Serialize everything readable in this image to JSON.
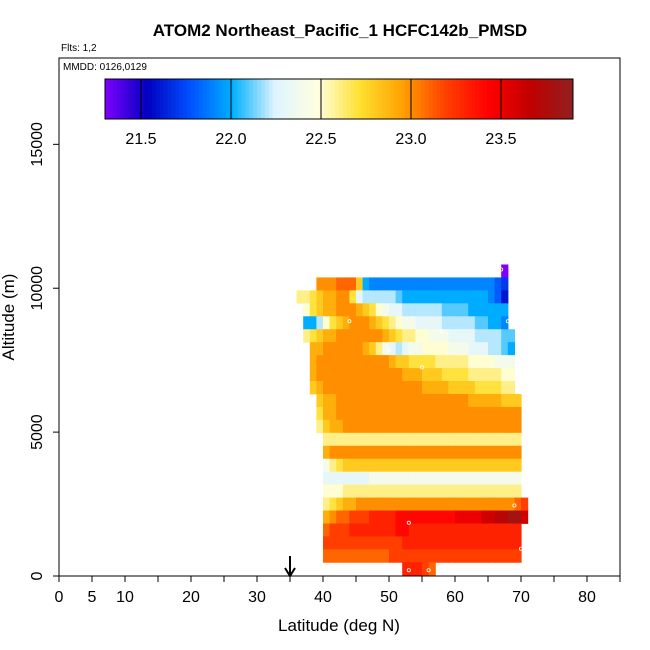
{
  "chart_data": {
    "type": "heatmap",
    "title": "ATOM2 Northeast_Pacific_1 HCFC142b_PMSD",
    "flights_label": "Flts: 1,2",
    "dates_label": "MMDD: 0126,0129",
    "xlabel": "Latitude (deg N)",
    "ylabel": "Altitude (m)",
    "xlim": [
      0,
      85
    ],
    "ylim": [
      0,
      18000
    ],
    "x_ticks": [
      0,
      5,
      10,
      20,
      30,
      40,
      50,
      60,
      70,
      80
    ],
    "y_ticks": [
      0,
      5000,
      10000,
      15000
    ],
    "colorbar": {
      "min": 21.3,
      "max": 23.9,
      "ticks": [
        21.5,
        22.0,
        22.5,
        23.0,
        23.5
      ],
      "tick_labels": [
        "21.5",
        "22.0",
        "22.5",
        "23.0",
        "23.5"
      ],
      "colors": [
        "#7f00ff",
        "#0000c0",
        "#0050ff",
        "#00b0ff",
        "#e0f4ff",
        "#ffffe0",
        "#ffe030",
        "#ffa000",
        "#ff4000",
        "#ff0000",
        "#c00000",
        "#902020"
      ]
    },
    "arrow_latitude": 35,
    "layers": [
      {
        "alt": 10600,
        "x0": 67,
        "x1": 68,
        "v": [
          21.3
        ]
      },
      {
        "alt": 10150,
        "x0": 39,
        "x1": 68,
        "v": [
          23.0,
          23.0,
          23.0,
          23.1,
          23.1,
          23.1,
          22.8,
          22.0,
          21.9,
          21.9,
          21.9,
          21.9,
          21.9,
          21.9,
          21.9,
          21.9,
          21.9,
          21.9,
          21.9,
          21.9,
          21.9,
          21.9,
          21.9,
          21.9,
          21.9,
          21.9,
          21.9,
          21.8,
          21.7
        ]
      },
      {
        "alt": 9700,
        "x0": 36,
        "x1": 68,
        "v": [
          22.6,
          22.6,
          22.7,
          22.8,
          22.9,
          22.9,
          23.0,
          23.0,
          22.7,
          22.3,
          22.2,
          22.2,
          22.2,
          22.2,
          22.2,
          22.1,
          22.0,
          22.0,
          22.0,
          22.0,
          22.0,
          22.0,
          22.0,
          22.0,
          22.0,
          22.0,
          22.0,
          22.0,
          22.0,
          21.9,
          21.8,
          21.6
        ]
      },
      {
        "alt": 9250,
        "x0": 37,
        "x1": 68,
        "v": [
          22.5,
          22.7,
          22.8,
          22.9,
          22.9,
          23.0,
          23.0,
          23.0,
          22.9,
          22.8,
          22.7,
          22.5,
          22.4,
          22.3,
          22.3,
          22.2,
          22.2,
          22.2,
          22.2,
          22.2,
          22.2,
          22.1,
          22.1,
          22.1,
          22.1,
          22.0,
          22.0,
          22.0,
          22.0,
          22.0,
          22.0
        ]
      },
      {
        "alt": 8800,
        "x0": 37,
        "x1": 68,
        "v": [
          22.0,
          22.0,
          22.2,
          22.5,
          22.7,
          22.8,
          22.9,
          23.0,
          23.0,
          23.0,
          22.9,
          22.8,
          22.7,
          22.6,
          22.5,
          22.4,
          22.4,
          22.3,
          22.3,
          22.3,
          22.3,
          22.2,
          22.2,
          22.2,
          22.2,
          22.2,
          22.1,
          22.1,
          22.0,
          22.0,
          21.9
        ]
      },
      {
        "alt": 8350,
        "x0": 37,
        "x1": 69,
        "v": [
          22.6,
          22.7,
          22.8,
          22.9,
          22.9,
          23.0,
          23.0,
          23.0,
          23.0,
          23.0,
          23.0,
          23.0,
          22.9,
          22.8,
          22.7,
          22.6,
          22.6,
          22.5,
          22.5,
          22.4,
          22.4,
          22.4,
          22.3,
          22.3,
          22.3,
          22.3,
          22.2,
          22.2,
          22.2,
          22.2,
          22.1,
          22.1
        ]
      },
      {
        "alt": 7900,
        "x0": 38,
        "x1": 69,
        "v": [
          22.9,
          22.9,
          23.0,
          23.0,
          23.0,
          23.0,
          23.0,
          23.0,
          22.9,
          22.8,
          22.6,
          22.4,
          22.3,
          22.2,
          22.3,
          22.4,
          22.4,
          22.5,
          22.5,
          22.5,
          22.5,
          22.4,
          22.4,
          22.4,
          22.3,
          22.3,
          22.3,
          22.2,
          22.2,
          22.1,
          22.0
        ]
      },
      {
        "alt": 7450,
        "x0": 38,
        "x1": 69,
        "v": [
          22.9,
          23.0,
          23.0,
          23.0,
          23.0,
          23.0,
          23.0,
          23.0,
          23.0,
          23.0,
          23.0,
          23.0,
          22.9,
          22.8,
          22.8,
          22.7,
          22.7,
          22.7,
          22.7,
          22.6,
          22.6,
          22.6,
          22.6,
          22.6,
          22.5,
          22.5,
          22.5,
          22.5,
          22.4,
          22.4,
          22.4
        ]
      },
      {
        "alt": 7000,
        "x0": 38,
        "x1": 69,
        "v": [
          22.9,
          23.0,
          23.0,
          23.0,
          23.0,
          23.0,
          23.0,
          23.0,
          23.0,
          23.0,
          23.0,
          23.0,
          23.0,
          23.0,
          22.9,
          22.9,
          22.9,
          22.8,
          22.8,
          22.8,
          22.7,
          22.7,
          22.7,
          22.7,
          22.6,
          22.6,
          22.6,
          22.6,
          22.6,
          22.5,
          22.5
        ]
      },
      {
        "alt": 6550,
        "x0": 38,
        "x1": 69,
        "v": [
          22.8,
          22.9,
          23.0,
          23.0,
          23.0,
          23.0,
          23.0,
          23.0,
          23.0,
          23.0,
          23.0,
          23.0,
          23.0,
          23.0,
          23.0,
          23.0,
          23.0,
          22.9,
          22.9,
          22.9,
          22.9,
          22.8,
          22.8,
          22.8,
          22.8,
          22.7,
          22.7,
          22.7,
          22.7,
          22.6,
          22.6
        ]
      },
      {
        "alt": 6100,
        "x0": 39,
        "x1": 70,
        "v": [
          22.8,
          22.9,
          22.9,
          23.0,
          23.0,
          23.0,
          23.0,
          23.0,
          23.0,
          23.0,
          23.0,
          23.0,
          23.0,
          23.0,
          23.0,
          23.0,
          23.0,
          23.0,
          23.0,
          23.0,
          23.0,
          23.0,
          23.0,
          22.9,
          22.9,
          22.9,
          22.9,
          22.9,
          22.8,
          22.8,
          22.8
        ]
      },
      {
        "alt": 5650,
        "x0": 39,
        "x1": 70,
        "v": [
          22.7,
          22.9,
          22.9,
          23.0,
          23.0,
          23.0,
          23.0,
          23.0,
          23.0,
          23.0,
          23.0,
          23.0,
          23.0,
          23.0,
          23.0,
          23.0,
          23.0,
          23.0,
          23.0,
          23.0,
          23.0,
          23.0,
          23.0,
          23.0,
          23.0,
          23.0,
          23.0,
          23.0,
          23.0,
          23.0,
          23.0
        ]
      },
      {
        "alt": 5200,
        "x0": 39,
        "x1": 70,
        "v": [
          22.6,
          22.8,
          22.9,
          22.9,
          23.0,
          23.0,
          23.0,
          23.0,
          23.0,
          23.0,
          23.0,
          23.0,
          23.0,
          23.0,
          23.0,
          23.0,
          23.0,
          23.0,
          23.0,
          23.0,
          23.0,
          23.0,
          23.0,
          23.0,
          23.0,
          23.0,
          23.0,
          23.0,
          23.0,
          23.0,
          23.0
        ]
      },
      {
        "alt": 4750,
        "x0": 40,
        "x1": 70,
        "v": [
          22.6,
          22.6,
          22.6,
          22.6,
          22.6,
          22.6,
          22.6,
          22.6,
          22.6,
          22.6,
          22.6,
          22.6,
          22.6,
          22.6,
          22.6,
          22.6,
          22.6,
          22.6,
          22.6,
          22.6,
          22.6,
          22.6,
          22.6,
          22.6,
          22.6,
          22.6,
          22.6,
          22.6,
          22.6,
          22.6
        ]
      },
      {
        "alt": 4300,
        "x0": 40,
        "x1": 70,
        "v": [
          22.9,
          23.0,
          23.0,
          23.0,
          23.0,
          23.0,
          23.0,
          23.0,
          23.0,
          23.0,
          23.0,
          23.0,
          23.0,
          23.0,
          23.0,
          23.0,
          23.0,
          23.0,
          23.0,
          23.0,
          23.0,
          23.0,
          23.0,
          23.0,
          23.0,
          23.0,
          23.0,
          23.0,
          23.0,
          23.0
        ]
      },
      {
        "alt": 3850,
        "x0": 40,
        "x1": 70,
        "v": [
          22.4,
          22.6,
          22.7,
          22.8,
          22.8,
          22.8,
          22.8,
          22.8,
          22.8,
          22.8,
          22.8,
          22.8,
          22.8,
          22.8,
          22.8,
          22.8,
          22.8,
          22.8,
          22.8,
          22.8,
          22.8,
          22.8,
          22.8,
          22.8,
          22.8,
          22.8,
          22.8,
          22.8,
          22.8,
          22.8
        ]
      },
      {
        "alt": 3400,
        "x0": 40,
        "x1": 70,
        "v": [
          22.3,
          22.3,
          22.3,
          22.3,
          22.3,
          22.3,
          22.3,
          22.4,
          22.4,
          22.4,
          22.4,
          22.4,
          22.4,
          22.4,
          22.4,
          22.4,
          22.4,
          22.4,
          22.4,
          22.4,
          22.4,
          22.4,
          22.4,
          22.4,
          22.4,
          22.4,
          22.4,
          22.4,
          22.4,
          22.4
        ]
      },
      {
        "alt": 2950,
        "x0": 40,
        "x1": 70,
        "v": [
          22.5,
          22.5,
          22.5,
          22.6,
          22.6,
          22.6,
          22.6,
          22.6,
          22.6,
          22.6,
          22.6,
          22.6,
          22.6,
          22.6,
          22.6,
          22.6,
          22.6,
          22.6,
          22.6,
          22.6,
          22.6,
          22.6,
          22.6,
          22.6,
          22.6,
          22.6,
          22.6,
          22.6,
          22.6,
          22.6
        ]
      },
      {
        "alt": 2500,
        "x0": 40,
        "x1": 71,
        "v": [
          22.6,
          22.7,
          22.8,
          22.9,
          22.9,
          23.0,
          23.0,
          23.0,
          23.0,
          23.0,
          23.0,
          23.0,
          23.0,
          23.0,
          23.0,
          23.0,
          23.0,
          23.0,
          23.0,
          23.0,
          23.0,
          23.0,
          23.0,
          23.0,
          23.0,
          23.0,
          23.0,
          23.0,
          23.0,
          23.1,
          23.2
        ]
      },
      {
        "alt": 2050,
        "x0": 40,
        "x1": 71,
        "v": [
          22.9,
          23.0,
          23.1,
          23.1,
          23.2,
          23.2,
          23.2,
          23.3,
          23.3,
          23.3,
          23.3,
          23.4,
          23.4,
          23.4,
          23.4,
          23.4,
          23.4,
          23.4,
          23.4,
          23.4,
          23.5,
          23.5,
          23.5,
          23.5,
          23.6,
          23.6,
          23.7,
          23.7,
          23.8,
          23.8,
          23.6
        ]
      },
      {
        "alt": 1600,
        "x0": 40,
        "x1": 70,
        "v": [
          23.1,
          23.2,
          23.2,
          23.2,
          23.3,
          23.3,
          23.3,
          23.3,
          23.3,
          23.3,
          23.3,
          23.4,
          23.4,
          23.3,
          23.3,
          23.3,
          23.3,
          23.3,
          23.3,
          23.3,
          23.3,
          23.3,
          23.3,
          23.3,
          23.3,
          23.3,
          23.3,
          23.3,
          23.3,
          23.3
        ]
      },
      {
        "alt": 1150,
        "x0": 40,
        "x1": 70,
        "v": [
          23.2,
          23.2,
          23.2,
          23.2,
          23.2,
          23.2,
          23.2,
          23.2,
          23.2,
          23.2,
          23.2,
          23.2,
          23.3,
          23.3,
          23.3,
          23.3,
          23.3,
          23.3,
          23.3,
          23.3,
          23.3,
          23.3,
          23.3,
          23.3,
          23.3,
          23.3,
          23.3,
          23.3,
          23.3,
          23.3
        ]
      },
      {
        "alt": 700,
        "x0": 40,
        "x1": 70,
        "v": [
          23.1,
          23.1,
          23.1,
          23.1,
          23.1,
          23.1,
          23.1,
          23.1,
          23.1,
          23.1,
          23.2,
          23.2,
          23.2,
          23.2,
          23.2,
          23.2,
          23.2,
          23.2,
          23.2,
          23.2,
          23.2,
          23.2,
          23.2,
          23.2,
          23.2,
          23.2,
          23.2,
          23.2,
          23.2,
          23.2
        ]
      },
      {
        "alt": 250,
        "x0": 52,
        "x1": 57,
        "v": [
          23.3,
          23.3,
          23.3,
          23.2,
          23.1
        ]
      }
    ],
    "sample_points": [
      [
        43,
        10450
      ],
      [
        44,
        10450
      ],
      [
        60,
        10450
      ],
      [
        63,
        10450
      ],
      [
        67,
        10650
      ],
      [
        44,
        8850
      ],
      [
        58,
        8500
      ],
      [
        68,
        8850
      ],
      [
        55,
        7250
      ],
      [
        50,
        7850
      ],
      [
        53,
        1850
      ],
      [
        69,
        2450
      ],
      [
        71,
        2850
      ],
      [
        70,
        950
      ],
      [
        53,
        200
      ],
      [
        56,
        200
      ]
    ]
  }
}
